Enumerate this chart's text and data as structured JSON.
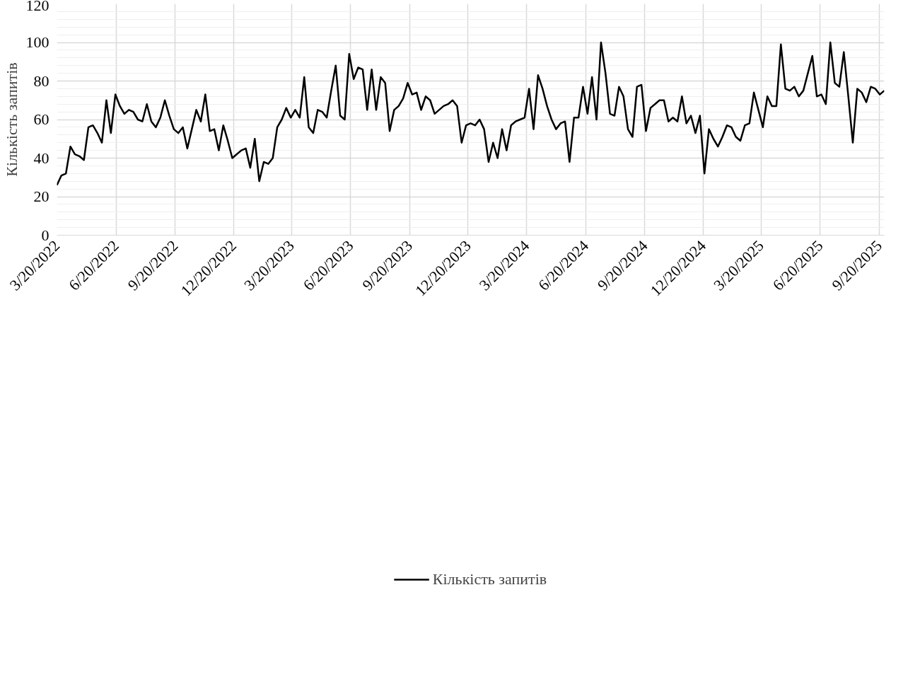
{
  "chart_data": {
    "type": "line",
    "ylabel": "Кількість запитів",
    "legend": "bottom",
    "grid": true,
    "marker": "none",
    "line_style": "solid",
    "xlim": [
      "2022-03-20",
      "2025-09-28"
    ],
    "ylim": [
      0,
      120
    ],
    "yticks": [
      0,
      20,
      40,
      60,
      80,
      100,
      120
    ],
    "xticks": [
      {
        "value": "2022-03-20",
        "label": "3/20/2022"
      },
      {
        "value": "2022-06-20",
        "label": "6/20/2022"
      },
      {
        "value": "2022-09-20",
        "label": "9/20/2022"
      },
      {
        "value": "2022-12-20",
        "label": "12/20/2022"
      },
      {
        "value": "2023-03-20",
        "label": "3/20/2023"
      },
      {
        "value": "2023-06-20",
        "label": "6/20/2023"
      },
      {
        "value": "2023-09-20",
        "label": "9/20/2023"
      },
      {
        "value": "2023-12-20",
        "label": "12/20/2023"
      },
      {
        "value": "2024-03-20",
        "label": "3/20/2024"
      },
      {
        "value": "2024-06-20",
        "label": "6/20/2024"
      },
      {
        "value": "2024-09-20",
        "label": "9/20/2024"
      },
      {
        "value": "2024-12-20",
        "label": "12/20/2024"
      },
      {
        "value": "2025-03-20",
        "label": "3/20/2025"
      },
      {
        "value": "2025-06-20",
        "label": "6/20/2025"
      },
      {
        "value": "2025-09-20",
        "label": "9/20/2025"
      }
    ],
    "x": [
      "2022-03-20",
      "2022-03-27",
      "2022-04-03",
      "2022-04-10",
      "2022-04-17",
      "2022-04-24",
      "2022-05-01",
      "2022-05-08",
      "2022-05-15",
      "2022-05-22",
      "2022-05-29",
      "2022-06-05",
      "2022-06-12",
      "2022-06-19",
      "2022-06-26",
      "2022-07-03",
      "2022-07-10",
      "2022-07-17",
      "2022-07-24",
      "2022-07-31",
      "2022-08-07",
      "2022-08-14",
      "2022-08-21",
      "2022-08-28",
      "2022-09-04",
      "2022-09-11",
      "2022-09-18",
      "2022-09-25",
      "2022-10-02",
      "2022-10-09",
      "2022-10-16",
      "2022-10-23",
      "2022-10-30",
      "2022-11-06",
      "2022-11-13",
      "2022-11-20",
      "2022-11-27",
      "2022-12-04",
      "2022-12-11",
      "2022-12-18",
      "2022-12-25",
      "2023-01-01",
      "2023-01-08",
      "2023-01-15",
      "2023-01-22",
      "2023-01-29",
      "2023-02-05",
      "2023-02-12",
      "2023-02-19",
      "2023-02-26",
      "2023-03-05",
      "2023-03-12",
      "2023-03-19",
      "2023-03-26",
      "2023-04-02",
      "2023-04-09",
      "2023-04-16",
      "2023-04-23",
      "2023-04-30",
      "2023-05-07",
      "2023-05-14",
      "2023-05-21",
      "2023-05-28",
      "2023-06-04",
      "2023-06-11",
      "2023-06-18",
      "2023-06-25",
      "2023-07-02",
      "2023-07-09",
      "2023-07-16",
      "2023-07-23",
      "2023-07-30",
      "2023-08-06",
      "2023-08-13",
      "2023-08-20",
      "2023-08-27",
      "2023-09-03",
      "2023-09-10",
      "2023-09-17",
      "2023-09-24",
      "2023-10-01",
      "2023-10-08",
      "2023-10-15",
      "2023-10-22",
      "2023-10-29",
      "2023-11-05",
      "2023-11-12",
      "2023-11-19",
      "2023-11-26",
      "2023-12-03",
      "2023-12-10",
      "2023-12-17",
      "2023-12-24",
      "2023-12-31",
      "2024-01-07",
      "2024-01-14",
      "2024-01-21",
      "2024-01-28",
      "2024-02-04",
      "2024-02-11",
      "2024-02-18",
      "2024-02-25",
      "2024-03-03",
      "2024-03-10",
      "2024-03-17",
      "2024-03-24",
      "2024-03-31",
      "2024-04-07",
      "2024-04-14",
      "2024-04-21",
      "2024-04-28",
      "2024-05-05",
      "2024-05-12",
      "2024-05-19",
      "2024-05-26",
      "2024-06-02",
      "2024-06-09",
      "2024-06-16",
      "2024-06-23",
      "2024-06-30",
      "2024-07-07",
      "2024-07-14",
      "2024-07-21",
      "2024-07-28",
      "2024-08-04",
      "2024-08-11",
      "2024-08-18",
      "2024-08-25",
      "2024-09-01",
      "2024-09-08",
      "2024-09-15",
      "2024-09-22",
      "2024-09-29",
      "2024-10-06",
      "2024-10-13",
      "2024-10-20",
      "2024-10-27",
      "2024-11-03",
      "2024-11-10",
      "2024-11-17",
      "2024-11-24",
      "2024-12-01",
      "2024-12-08",
      "2024-12-15",
      "2024-12-22",
      "2024-12-29",
      "2025-01-05",
      "2025-01-12",
      "2025-01-19",
      "2025-01-26",
      "2025-02-02",
      "2025-02-09",
      "2025-02-16",
      "2025-02-23",
      "2025-03-02",
      "2025-03-09",
      "2025-03-16",
      "2025-03-23",
      "2025-03-30",
      "2025-04-06",
      "2025-04-13",
      "2025-04-20",
      "2025-04-27",
      "2025-05-04",
      "2025-05-11",
      "2025-05-18",
      "2025-05-25",
      "2025-06-01",
      "2025-06-08",
      "2025-06-15",
      "2025-06-22",
      "2025-06-29",
      "2025-07-06",
      "2025-07-13",
      "2025-07-20",
      "2025-07-27",
      "2025-08-03",
      "2025-08-10",
      "2025-08-17",
      "2025-08-24",
      "2025-08-31",
      "2025-09-07",
      "2025-09-14",
      "2025-09-21",
      "2025-09-28"
    ],
    "series": [
      {
        "name": "Кількість запитів",
        "color": "#000000",
        "values": [
          26,
          31,
          32,
          46,
          42,
          41,
          39,
          56,
          57,
          53,
          48,
          70,
          53,
          73,
          67,
          63,
          65,
          64,
          60,
          59,
          68,
          59,
          56,
          61,
          70,
          62,
          55,
          53,
          56,
          45,
          55,
          65,
          59,
          73,
          54,
          55,
          44,
          57,
          49,
          40,
          42,
          44,
          45,
          35,
          50,
          28,
          38,
          37,
          40,
          56,
          60,
          66,
          61,
          65,
          61,
          82,
          56,
          53,
          65,
          64,
          61,
          75,
          88,
          62,
          60,
          94,
          81,
          87,
          86,
          65,
          86,
          65,
          82,
          79,
          54,
          65,
          67,
          71,
          79,
          73,
          74,
          65,
          72,
          70,
          63,
          65,
          67,
          68,
          70,
          67,
          48,
          57,
          58,
          57,
          60,
          55,
          38,
          48,
          40,
          55,
          44,
          57,
          59,
          60,
          61,
          76,
          55,
          83,
          76,
          67,
          60,
          55,
          58,
          59,
          38,
          61,
          61,
          77,
          63,
          82,
          60,
          100,
          84,
          63,
          62,
          77,
          72,
          55,
          51,
          77,
          78,
          54,
          66,
          68,
          70,
          70,
          59,
          61,
          59,
          72,
          58,
          62,
          53,
          62,
          32,
          55,
          50,
          46,
          51,
          57,
          56,
          51,
          49,
          57,
          58,
          74,
          65,
          56,
          72,
          67,
          67,
          99,
          76,
          75,
          77,
          72,
          75,
          84,
          93,
          72,
          73,
          68,
          100,
          79,
          77,
          95,
          72,
          48,
          76,
          74,
          69,
          77,
          76,
          73,
          75
        ]
      }
    ]
  }
}
